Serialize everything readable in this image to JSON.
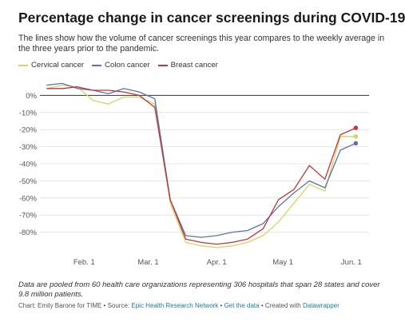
{
  "title": "Percentage change in cancer screenings during COVID-19",
  "subtitle": "The lines show how the volume of cancer screenings this year compares to the weekly average in the three years prior to the pandemic.",
  "footnote": "Data are pooled from 60 health care organizations representing 306 hospitals that span 28 states and cover 9.8 million patients.",
  "credits": {
    "prefix": "Chart: Emily Barone for TIME • Source: ",
    "source": "Epic Health Research Network",
    "sep1": " • ",
    "get_data": "Get the data",
    "sep2": " • Created with ",
    "tool": "Datawrapper"
  },
  "chart_data": {
    "type": "line",
    "x_unit": "weeks of 2020 (day of year)",
    "x_ticks": [
      {
        "label": "Feb. 1",
        "day": 32
      },
      {
        "label": "Mar. 1",
        "day": 61
      },
      {
        "label": "Apr. 1",
        "day": 92
      },
      {
        "label": "May 1",
        "day": 122
      },
      {
        "label": "Jun. 1",
        "day": 153
      }
    ],
    "xlim": [
      12,
      161
    ],
    "ylim": [
      -90,
      10
    ],
    "y_ticks": [
      {
        "label": "0%",
        "value": 0
      },
      {
        "label": "-10%",
        "value": -10
      },
      {
        "label": "-20%",
        "value": -20
      },
      {
        "label": "-30%",
        "value": -30
      },
      {
        "label": "-40%",
        "value": -40
      },
      {
        "label": "-50%",
        "value": -50
      },
      {
        "label": "-60%",
        "value": -60
      },
      {
        "label": "-70%",
        "value": -70
      },
      {
        "label": "-80%",
        "value": -80
      }
    ],
    "x": [
      15,
      22,
      29,
      36,
      43,
      50,
      57,
      64,
      71,
      78,
      85,
      92,
      99,
      106,
      113,
      120,
      127,
      134,
      141,
      148,
      155
    ],
    "series": [
      {
        "name": "Cervical cancer",
        "color": "#d4d467",
        "values": [
          4,
          6,
          5,
          -3,
          -5,
          -1,
          -1,
          -5,
          -63,
          -86,
          -88,
          -89,
          -88,
          -86,
          -82,
          -74,
          -63,
          -52,
          -56,
          -24,
          -24
        ]
      },
      {
        "name": "Colon cancer",
        "color": "#5b73a8",
        "values": [
          6,
          7,
          4,
          3,
          1,
          4,
          2,
          -2,
          -61,
          -82,
          -83,
          -82,
          -80,
          -79,
          -75,
          -65,
          -57,
          -50,
          -54,
          -32,
          -28
        ]
      },
      {
        "name": "Breast cancer",
        "color": "#c2353c",
        "values": [
          4,
          4,
          5,
          3,
          3,
          2,
          0,
          -7,
          -61,
          -84,
          -86,
          -87,
          -86,
          -84,
          -78,
          -61,
          -55,
          -41,
          -49,
          -23,
          -19
        ]
      }
    ],
    "end_dots": true,
    "grid": true,
    "legend": "top-left"
  }
}
